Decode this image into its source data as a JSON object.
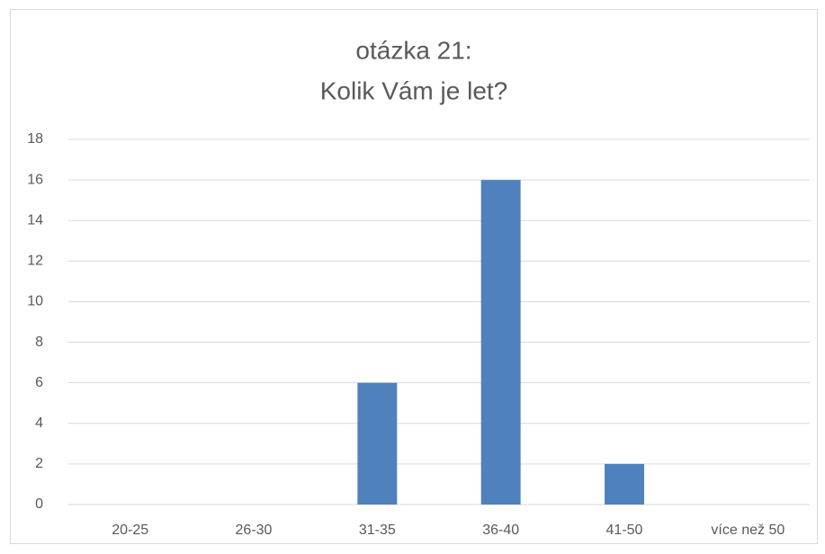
{
  "chart_data": {
    "type": "bar",
    "title": [
      "otázka 21:",
      "Kolik Vám je let?"
    ],
    "categories": [
      "20-25",
      "26-30",
      "31-35",
      "36-40",
      "41-50",
      "více než 50"
    ],
    "values": [
      0,
      0,
      6,
      16,
      2,
      0
    ],
    "color": "#4f81bd",
    "ylim": [
      0,
      18
    ],
    "yticks": [
      0,
      2,
      4,
      6,
      8,
      10,
      12,
      14,
      16,
      18
    ],
    "grid": true
  }
}
